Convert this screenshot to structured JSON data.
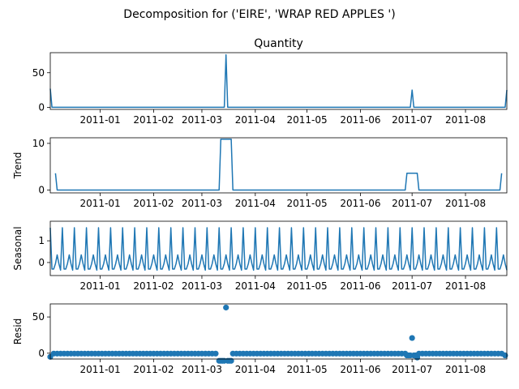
{
  "figure": {
    "suptitle": "Decomposition for ('EIRE', 'WRAP RED APPLES ')"
  },
  "chart_data": [
    {
      "type": "line",
      "title": "Quantity",
      "ylabel": "",
      "ylim": [
        -3,
        79
      ],
      "yticks": [
        0,
        50
      ],
      "x": [
        "2010-12-03",
        "2010-12-04",
        "2011-03-14",
        "2011-03-15",
        "2011-03-16",
        "2011-06-30",
        "2011-07-01",
        "2011-07-02",
        "2011-08-24",
        "2011-08-25"
      ],
      "values": [
        27,
        0,
        0,
        76,
        0,
        0,
        25,
        0,
        0,
        25
      ],
      "color": "#1f77b4"
    },
    {
      "type": "line",
      "title": "",
      "ylabel": "Trend",
      "ylim": [
        -0.6,
        11.2
      ],
      "yticks": [
        0,
        10
      ],
      "x": [
        "2010-12-06",
        "2010-12-07",
        "2011-03-11",
        "2011-03-12",
        "2011-03-18",
        "2011-03-19",
        "2011-06-27",
        "2011-06-28",
        "2011-07-04",
        "2011-07-05",
        "2011-08-21",
        "2011-08-22"
      ],
      "values": [
        3.6,
        0,
        0,
        10.9,
        10.9,
        0,
        0,
        3.6,
        3.6,
        0,
        0,
        3.6
      ],
      "color": "#1f77b4"
    },
    {
      "type": "line",
      "title": "",
      "ylabel": "Seasonal",
      "ylim": [
        -0.6,
        1.9
      ],
      "yticks": [
        0,
        1
      ],
      "period_days": 7,
      "x_start": "2010-12-03",
      "x_end": "2011-08-25",
      "weekly_pattern": [
        1.6,
        -0.3,
        -0.3,
        -0.05,
        0.35,
        -0.05,
        -0.35
      ],
      "color": "#1f77b4"
    },
    {
      "type": "scatter",
      "title": "",
      "ylabel": "Resid",
      "ylim": [
        -8,
        68
      ],
      "yticks": [
        0,
        50
      ],
      "baseline_value": -0.5,
      "baseline_x_start": "2010-12-03",
      "baseline_x_end": "2011-08-25",
      "baseline_step_days": 2,
      "x": [
        "2010-12-03",
        "2011-03-11",
        "2011-03-12",
        "2011-03-13",
        "2011-03-14",
        "2011-03-15",
        "2011-03-16",
        "2011-03-17",
        "2011-03-18",
        "2011-06-28",
        "2011-06-29",
        "2011-06-30",
        "2011-07-01",
        "2011-07-02",
        "2011-07-03",
        "2011-07-04",
        "2011-08-24"
      ],
      "values": [
        -5,
        -10.5,
        -10.5,
        -10.5,
        -10.5,
        63,
        -10.5,
        -10.5,
        -10.5,
        -3,
        -3,
        -3,
        21,
        -3,
        -3,
        -6,
        -3
      ],
      "color": "#1f77b4"
    }
  ],
  "x_axis": {
    "range": [
      "2010-12-03",
      "2011-08-25"
    ],
    "tick_dates": [
      "2011-01-01",
      "2011-02-01",
      "2011-03-01",
      "2011-04-01",
      "2011-05-01",
      "2011-06-01",
      "2011-07-01",
      "2011-08-01"
    ],
    "tick_labels": [
      "2011-01",
      "2011-02",
      "2011-03",
      "2011-04",
      "2011-05",
      "2011-06",
      "2011-07",
      "2011-08"
    ]
  }
}
